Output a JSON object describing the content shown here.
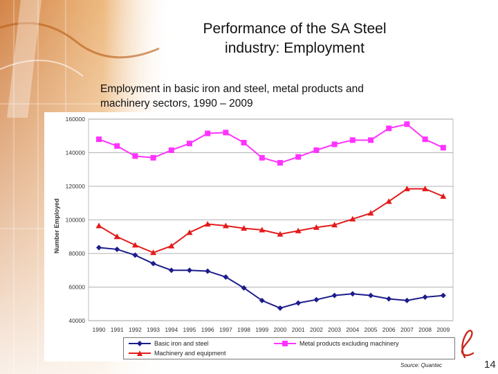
{
  "slide": {
    "title_line1": "Performance of the SA Steel",
    "title_line2": "industry: Employment",
    "subtitle_line1": "Employment in basic iron and steel, metal products and",
    "subtitle_line2": "machinery sectors, 1990 – 2009",
    "source": "Source: Quantec",
    "page_number": "14"
  },
  "colors": {
    "basic": "#1c1c8c",
    "metal": "#ff33ff",
    "machinery": "#e31b1b",
    "grid": "#999999",
    "deco_orange": "#d9822b"
  },
  "chart_data": {
    "type": "line",
    "title": "",
    "xlabel": "",
    "ylabel": "Number Employed",
    "ylim": [
      40000,
      160000
    ],
    "yticks": [
      40000,
      60000,
      80000,
      100000,
      120000,
      140000,
      160000
    ],
    "ytick_labels": [
      "40000",
      "60000",
      "80000",
      "100000",
      "120000",
      "140000",
      "160000"
    ],
    "grid": true,
    "legend_position": "bottom",
    "categories": [
      "1990",
      "1991",
      "1992",
      "1993",
      "1994",
      "1995",
      "1996",
      "1997",
      "1998",
      "1999",
      "2000",
      "2001",
      "2002",
      "2003",
      "2004",
      "2005",
      "2006",
      "2007",
      "2008",
      "2009"
    ],
    "series": [
      {
        "name": "Basic iron and steel",
        "marker": "diamond",
        "color_key": "basic",
        "values": [
          83500,
          82500,
          79000,
          74000,
          70000,
          70000,
          69500,
          66000,
          59500,
          52000,
          47500,
          50500,
          52500,
          55000,
          56000,
          55000,
          53000,
          52000,
          54000,
          55000
        ]
      },
      {
        "name": "Metal products excluding machinery",
        "marker": "square",
        "color_key": "metal",
        "values": [
          148000,
          144000,
          138000,
          137000,
          141500,
          145500,
          151500,
          152000,
          146000,
          137000,
          134000,
          137500,
          141500,
          145000,
          147500,
          147500,
          154500,
          157000,
          148000,
          143000
        ]
      },
      {
        "name": "Machinery and equipment",
        "marker": "triangle",
        "color_key": "machinery",
        "values": [
          96500,
          90000,
          85000,
          80500,
          84500,
          92500,
          97500,
          96500,
          95000,
          94000,
          91500,
          93500,
          95500,
          97000,
          100500,
          104000,
          111000,
          118500,
          118500,
          114000
        ]
      }
    ]
  }
}
